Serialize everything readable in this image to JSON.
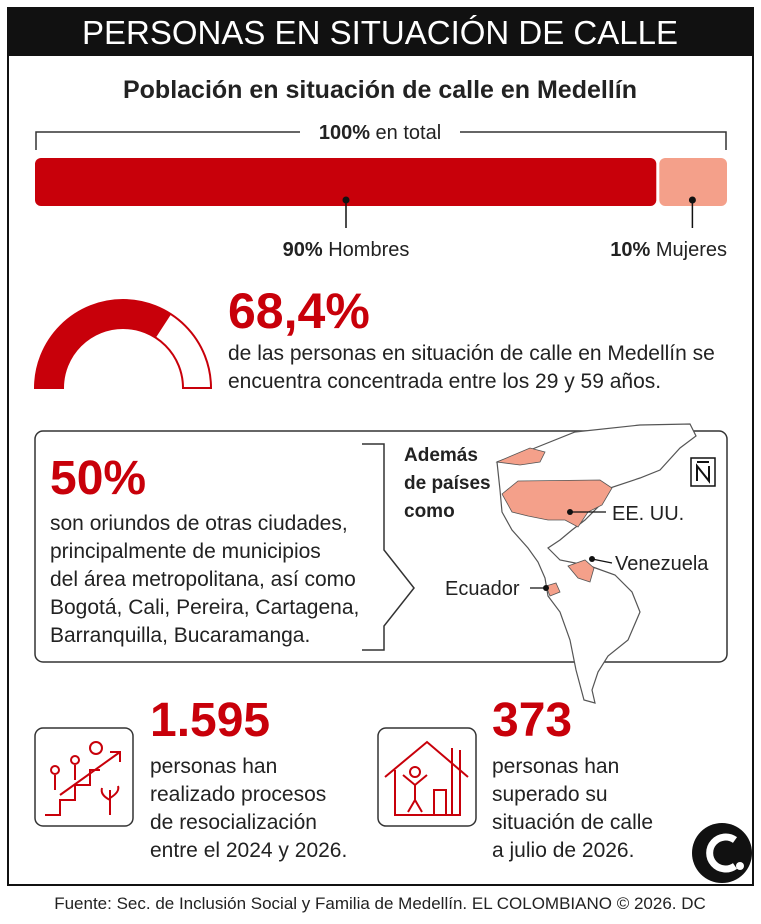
{
  "header": {
    "title": "PERSONAS EN SITUACIÓN DE CALLE"
  },
  "subtitle": "Población en situación de calle en Medellín",
  "total": {
    "value": 100,
    "label": "100%",
    "text": "en total"
  },
  "split": [
    {
      "value": 90,
      "label": "90%",
      "text": "Hombres",
      "color": "#c8000a"
    },
    {
      "value": 10,
      "label": "10%",
      "text": "Mujeres",
      "color": "#f4a08a"
    }
  ],
  "age": {
    "value": 68.4,
    "label": "68,4%",
    "lines": [
      "de las personas en situación de calle en Medellín se",
      "encuentra concentrada entre los 29 y 59 años."
    ]
  },
  "origin": {
    "label": "50%",
    "lines": [
      "son oriundos de otras ciudades,",
      "principalmente de municipios",
      "del área metropolitana, así como",
      "Bogotá, Cali, Pereira, Cartagena,",
      "Barranquilla, Bucaramanga."
    ],
    "countries_heading": [
      "Además",
      "de países",
      "como"
    ],
    "countries": [
      "EE. UU.",
      "Venezuela",
      "Ecuador"
    ]
  },
  "stats": [
    {
      "label": "1.595",
      "lines": [
        "personas han",
        "realizado procesos",
        "de resocialización",
        "entre el 2024 y 2026."
      ]
    },
    {
      "label": "373",
      "lines": [
        "personas han",
        "superado su",
        "situación de calle",
        "a julio de 2026."
      ]
    }
  ],
  "source": "Fuente: Sec. de Inclusión Social y Familia de Medellín. EL COLOMBIANO © 2026. DC"
}
